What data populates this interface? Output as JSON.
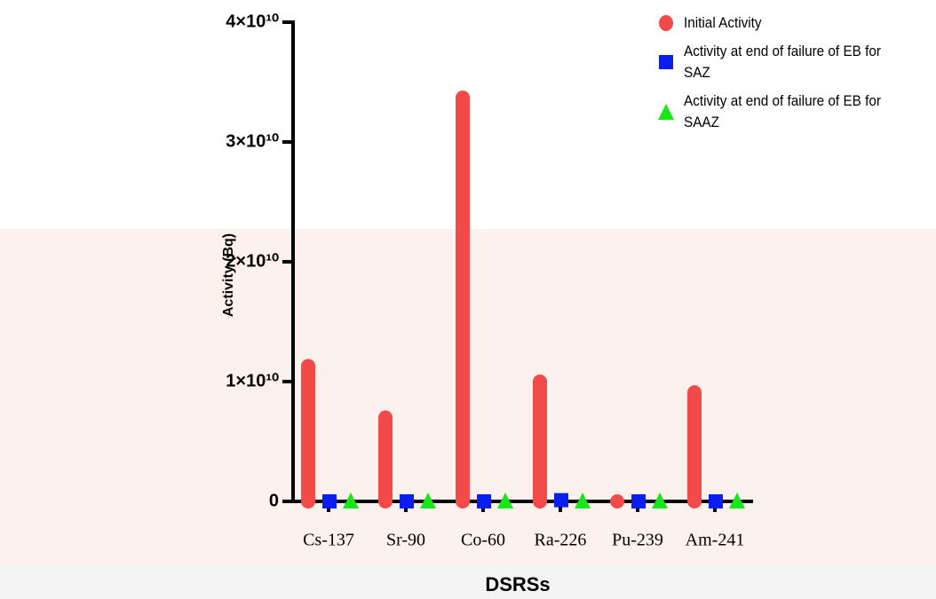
{
  "chart_data": {
    "type": "dot",
    "x_label": "DSRSs",
    "y_label": "Activity (Bq)",
    "categories": [
      "Cs-137",
      "Sr-90",
      "Co-60",
      "Ra-226",
      "Pu-239",
      "Am-241"
    ],
    "series": [
      {
        "name": "Initial Activity",
        "color": "#f24949",
        "marker": "circle",
        "droplines": true,
        "values": [
          11300000000,
          7000000000,
          33700000000,
          10000000000,
          0,
          9100000000
        ]
      },
      {
        "name": "Activity at end of failure of EB for SAZ",
        "color": "#0a1ef0",
        "marker": "square",
        "values": [
          0,
          0,
          0,
          100000000,
          0,
          0
        ]
      },
      {
        "name": "Activity at end of failure of EB for SAAZ",
        "color": "#19e619",
        "marker": "triangle",
        "values": [
          0,
          0,
          0,
          0,
          0,
          0
        ]
      }
    ],
    "ylim": [
      0,
      40000000000
    ],
    "yticks": [
      0,
      {
        "value": 10000000000,
        "label": "1×10¹⁰"
      },
      {
        "value": 20000000000,
        "label": "2×10¹⁰"
      },
      {
        "value": 30000000000,
        "label": "3×10¹⁰"
      },
      {
        "value": 40000000000,
        "label": "4×10¹⁰"
      }
    ],
    "legend": "top-right"
  }
}
